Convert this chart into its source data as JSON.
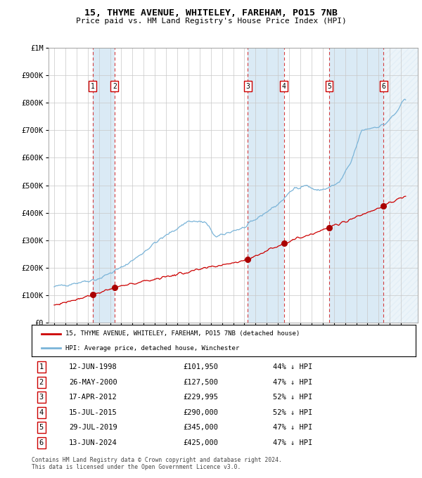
{
  "title": "15, THYME AVENUE, WHITELEY, FAREHAM, PO15 7NB",
  "subtitle": "Price paid vs. HM Land Registry's House Price Index (HPI)",
  "sales": [
    {
      "num": 1,
      "date_label": "12-JUN-1998",
      "year": 1998.45,
      "price": 101950,
      "pct": "44% ↓ HPI"
    },
    {
      "num": 2,
      "date_label": "26-MAY-2000",
      "year": 2000.4,
      "price": 127500,
      "pct": "47% ↓ HPI"
    },
    {
      "num": 3,
      "date_label": "17-APR-2012",
      "year": 2012.3,
      "price": 229995,
      "pct": "52% ↓ HPI"
    },
    {
      "num": 4,
      "date_label": "15-JUL-2015",
      "year": 2015.54,
      "price": 290000,
      "pct": "52% ↓ HPI"
    },
    {
      "num": 5,
      "date_label": "29-JUL-2019",
      "year": 2019.58,
      "price": 345000,
      "pct": "47% ↓ HPI"
    },
    {
      "num": 6,
      "date_label": "13-JUN-2024",
      "year": 2024.45,
      "price": 425000,
      "pct": "47% ↓ HPI"
    }
  ],
  "hpi_color": "#7ab4d8",
  "sale_color": "#cc0000",
  "marker_color": "#aa0000",
  "background_color": "#ffffff",
  "grid_color": "#c8c8c8",
  "shade_color": "#daeaf5",
  "ylim": [
    0,
    1000000
  ],
  "ytick_vals": [
    0,
    100000,
    200000,
    300000,
    400000,
    500000,
    600000,
    700000,
    800000,
    900000,
    1000000
  ],
  "xmin": 1994.5,
  "xmax": 2027.5,
  "legend_line1": "15, THYME AVENUE, WHITELEY, FAREHAM, PO15 7NB (detached house)",
  "legend_line2": "HPI: Average price, detached house, Winchester",
  "table_rows": [
    [
      "1",
      "12-JUN-1998",
      "£101,950",
      "44% ↓ HPI"
    ],
    [
      "2",
      "26-MAY-2000",
      "£127,500",
      "47% ↓ HPI"
    ],
    [
      "3",
      "17-APR-2012",
      "£229,995",
      "52% ↓ HPI"
    ],
    [
      "4",
      "15-JUL-2015",
      "£290,000",
      "52% ↓ HPI"
    ],
    [
      "5",
      "29-JUL-2019",
      "£345,000",
      "47% ↓ HPI"
    ],
    [
      "6",
      "13-JUN-2024",
      "£425,000",
      "47% ↓ HPI"
    ]
  ],
  "footnote": "Contains HM Land Registry data © Crown copyright and database right 2024.\nThis data is licensed under the Open Government Licence v3.0."
}
